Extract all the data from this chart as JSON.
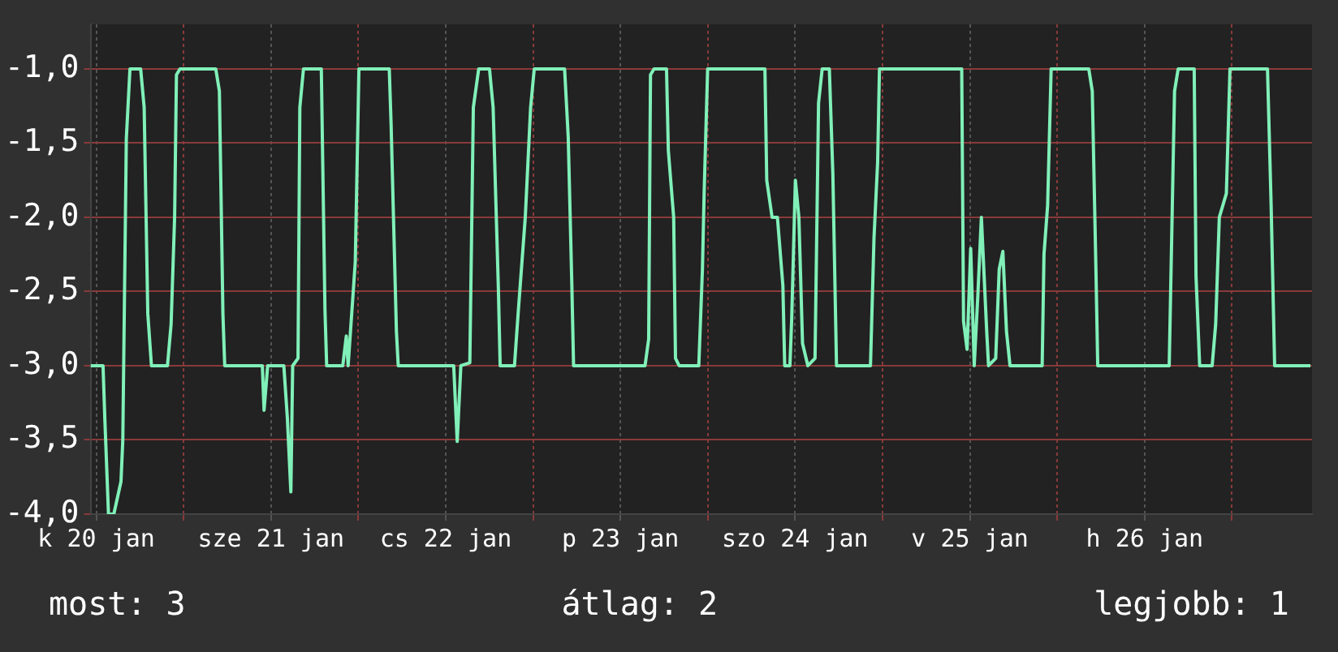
{
  "chart_data": {
    "type": "line",
    "color": "#80f0b8",
    "grid": true,
    "legend": false,
    "marker": "none",
    "line_style": "solid",
    "x": [
      "--01-20T11:13",
      "--01-20T12:56",
      "--01-20T13:11",
      "--01-20T13:41",
      "--01-20T14:25",
      "--01-20T15:24",
      "--01-20T15:39",
      "--01-20T16:08",
      "--01-20T16:38",
      "--01-20T18:06",
      "--01-20T18:35",
      "--01-20T19:05",
      "--01-20T19:35",
      "--01-20T21:47",
      "--01-20T22:17",
      "--01-20T22:46",
      "--01-20T23:01",
      "--01-20T23:31",
      "--01-21T04:25",
      "--01-21T04:55",
      "--01-21T05:24",
      "--01-21T05:39",
      "--01-21T10:49",
      "--01-21T11:03",
      "--01-21T11:33",
      "--01-21T13:46",
      "--01-21T14:15",
      "--01-21T14:44",
      "--01-21T14:59",
      "--01-21T15:43",
      "--01-21T15:58",
      "--01-21T16:28",
      "--01-21T18:55",
      "--01-21T19:25",
      "--01-21T19:39",
      "--01-21T21:52",
      "--01-21T22:21",
      "--01-21T22:36",
      "--01-21T23:35",
      "--01-22T00:05",
      "--01-22T04:15",
      "--01-22T04:30",
      "--01-22T05:14",
      "--01-22T05:29",
      "--01-22T13:06",
      "--01-22T13:35",
      "--01-22T14:05",
      "--01-22T15:19",
      "--01-22T15:48",
      "--01-22T16:32",
      "--01-22T18:01",
      "--01-22T18:31",
      "--01-22T19:14",
      "--01-22T19:29",
      "--01-22T21:27",
      "--01-22T21:57",
      "--01-22T22:56",
      "--01-22T23:40",
      "--01-23T00:10",
      "--01-23T04:20",
      "--01-23T04:50",
      "--01-23T05:19",
      "--01-23T05:34",
      "--01-23T15:23",
      "--01-23T15:53",
      "--01-23T16:08",
      "--01-23T16:37",
      "--01-23T18:20",
      "--01-23T18:35",
      "--01-23T19:19",
      "--01-23T19:34",
      "--01-23T20:04",
      "--01-23T22:46",
      "--01-23T23:16",
      "--01-23T23:30",
      "--01-23T23:59",
      "--01-24T07:51",
      "--01-24T08:06",
      "--01-24T08:50",
      "--01-24T09:34",
      "--01-24T10:19",
      "--01-24T10:34",
      "--01-24T11:17",
      "--01-24T11:32",
      "--01-24T12:02",
      "--01-24T12:31",
      "--01-24T13:01",
      "--01-24T13:45",
      "--01-24T14:44",
      "--01-24T15:13",
      "--01-24T15:43",
      "--01-24T16:42",
      "--01-24T17:11",
      "--01-24T17:41",
      "--01-24T22:21",
      "--01-24T22:50",
      "--01-24T23:20",
      "--01-24T23:35",
      "--01-25T10:53",
      "--01-25T11:08",
      "--01-25T11:37",
      "--01-25T12:07",
      "--01-25T12:36",
      "--01-25T13:05",
      "--01-25T13:35",
      "--01-25T14:19",
      "--01-25T14:34",
      "--01-25T15:33",
      "--01-25T16:02",
      "--01-25T16:32",
      "--01-25T17:02",
      "--01-25T17:31",
      "--01-25T21:56",
      "--01-25T22:11",
      "--01-25T22:41",
      "--01-25T23:10",
      "--01-26T04:20",
      "--01-26T04:49",
      "--01-26T05:19",
      "--01-26T05:34",
      "--01-26T15:23",
      "--01-26T16:07",
      "--01-26T16:37",
      "--01-26T18:49",
      "--01-26T19:04",
      "--01-26T19:34",
      "--01-26T21:17",
      "--01-26T21:46",
      "--01-26T22:16",
      "--01-26T23:14",
      "--01-26T23:44",
      "--01-27T04:53",
      "--01-27T05:23",
      "--01-27T05:52",
      "--01-27T10:47"
    ],
    "values": [
      -3.0,
      -3.0,
      -3.36,
      -4.0,
      -4.0,
      -3.78,
      -3.5,
      -1.47,
      -1.0,
      -1.0,
      -1.26,
      -2.65,
      -3.0,
      -3.0,
      -2.72,
      -2.0,
      -1.04,
      -1.0,
      -1.0,
      -1.15,
      -2.65,
      -3.0,
      -3.0,
      -3.3,
      -3.0,
      -3.0,
      -3.35,
      -3.85,
      -3.0,
      -2.95,
      -1.26,
      -1.0,
      -1.0,
      -2.62,
      -3.0,
      -3.0,
      -2.8,
      -3.0,
      -2.3,
      -1.0,
      -1.0,
      -1.37,
      -2.77,
      -3.0,
      -3.0,
      -3.51,
      -3.0,
      -2.98,
      -1.26,
      -1.0,
      -1.0,
      -1.26,
      -2.47,
      -3.0,
      -3.0,
      -2.65,
      -2.0,
      -1.26,
      -1.0,
      -1.0,
      -1.46,
      -2.43,
      -3.0,
      -3.0,
      -2.82,
      -1.04,
      -1.0,
      -1.0,
      -1.55,
      -2.0,
      -2.95,
      -3.0,
      -3.0,
      -2.35,
      -1.84,
      -1.0,
      -1.0,
      -1.75,
      -2.0,
      -2.0,
      -2.46,
      -3.0,
      -3.0,
      -2.68,
      -1.75,
      -2.0,
      -2.85,
      -3.0,
      -2.95,
      -1.23,
      -1.0,
      -1.0,
      -1.71,
      -3.0,
      -3.0,
      -2.14,
      -1.63,
      -1.0,
      -1.0,
      -2.7,
      -2.89,
      -2.21,
      -3.0,
      -2.54,
      -2.0,
      -2.77,
      -3.0,
      -2.95,
      -2.35,
      -2.23,
      -2.77,
      -3.0,
      -3.0,
      -2.25,
      -1.92,
      -1.0,
      -1.0,
      -1.15,
      -2.35,
      -3.0,
      -3.0,
      -1.15,
      -1.0,
      -1.0,
      -2.4,
      -3.0,
      -3.0,
      -2.72,
      -2.0,
      -1.84,
      -1.0,
      -1.0,
      -1.92,
      -3.0,
      -3.0
    ],
    "xlim": [
      "--01-20T11:13",
      "--01-27T11:00"
    ],
    "xticks": [
      {
        "value": "--01-20T12:00",
        "label": "k 20 jan"
      },
      {
        "value": "--01-21T00:00",
        "label": null
      },
      {
        "value": "--01-21T12:00",
        "label": "sze 21 jan"
      },
      {
        "value": "--01-22T00:00",
        "label": null
      },
      {
        "value": "--01-22T12:00",
        "label": "cs 22 jan"
      },
      {
        "value": "--01-23T00:00",
        "label": null
      },
      {
        "value": "--01-23T12:00",
        "label": "p 23 jan"
      },
      {
        "value": "--01-24T00:00",
        "label": null
      },
      {
        "value": "--01-24T12:00",
        "label": "szo 24 jan"
      },
      {
        "value": "--01-25T00:00",
        "label": null
      },
      {
        "value": "--01-25T12:00",
        "label": "v 25 jan"
      },
      {
        "value": "--01-26T00:00",
        "label": null
      },
      {
        "value": "--01-26T12:00",
        "label": "h 26 jan"
      },
      {
        "value": "--01-27T00:00",
        "label": null
      }
    ],
    "ylim": [
      -4.0,
      -0.7
    ],
    "yticks": [
      {
        "value": -4.0,
        "label": "-4,0"
      },
      {
        "value": -3.5,
        "label": "-3,5"
      },
      {
        "value": -3.0,
        "label": "-3,0"
      },
      {
        "value": -2.5,
        "label": "-2,5"
      },
      {
        "value": -2.0,
        "label": "-2,0"
      },
      {
        "value": -1.5,
        "label": "-1,5"
      },
      {
        "value": -1.0,
        "label": "-1,0"
      }
    ],
    "annotations": [
      "most: 3",
      "átlag: 2",
      "legjobb: 1"
    ]
  }
}
